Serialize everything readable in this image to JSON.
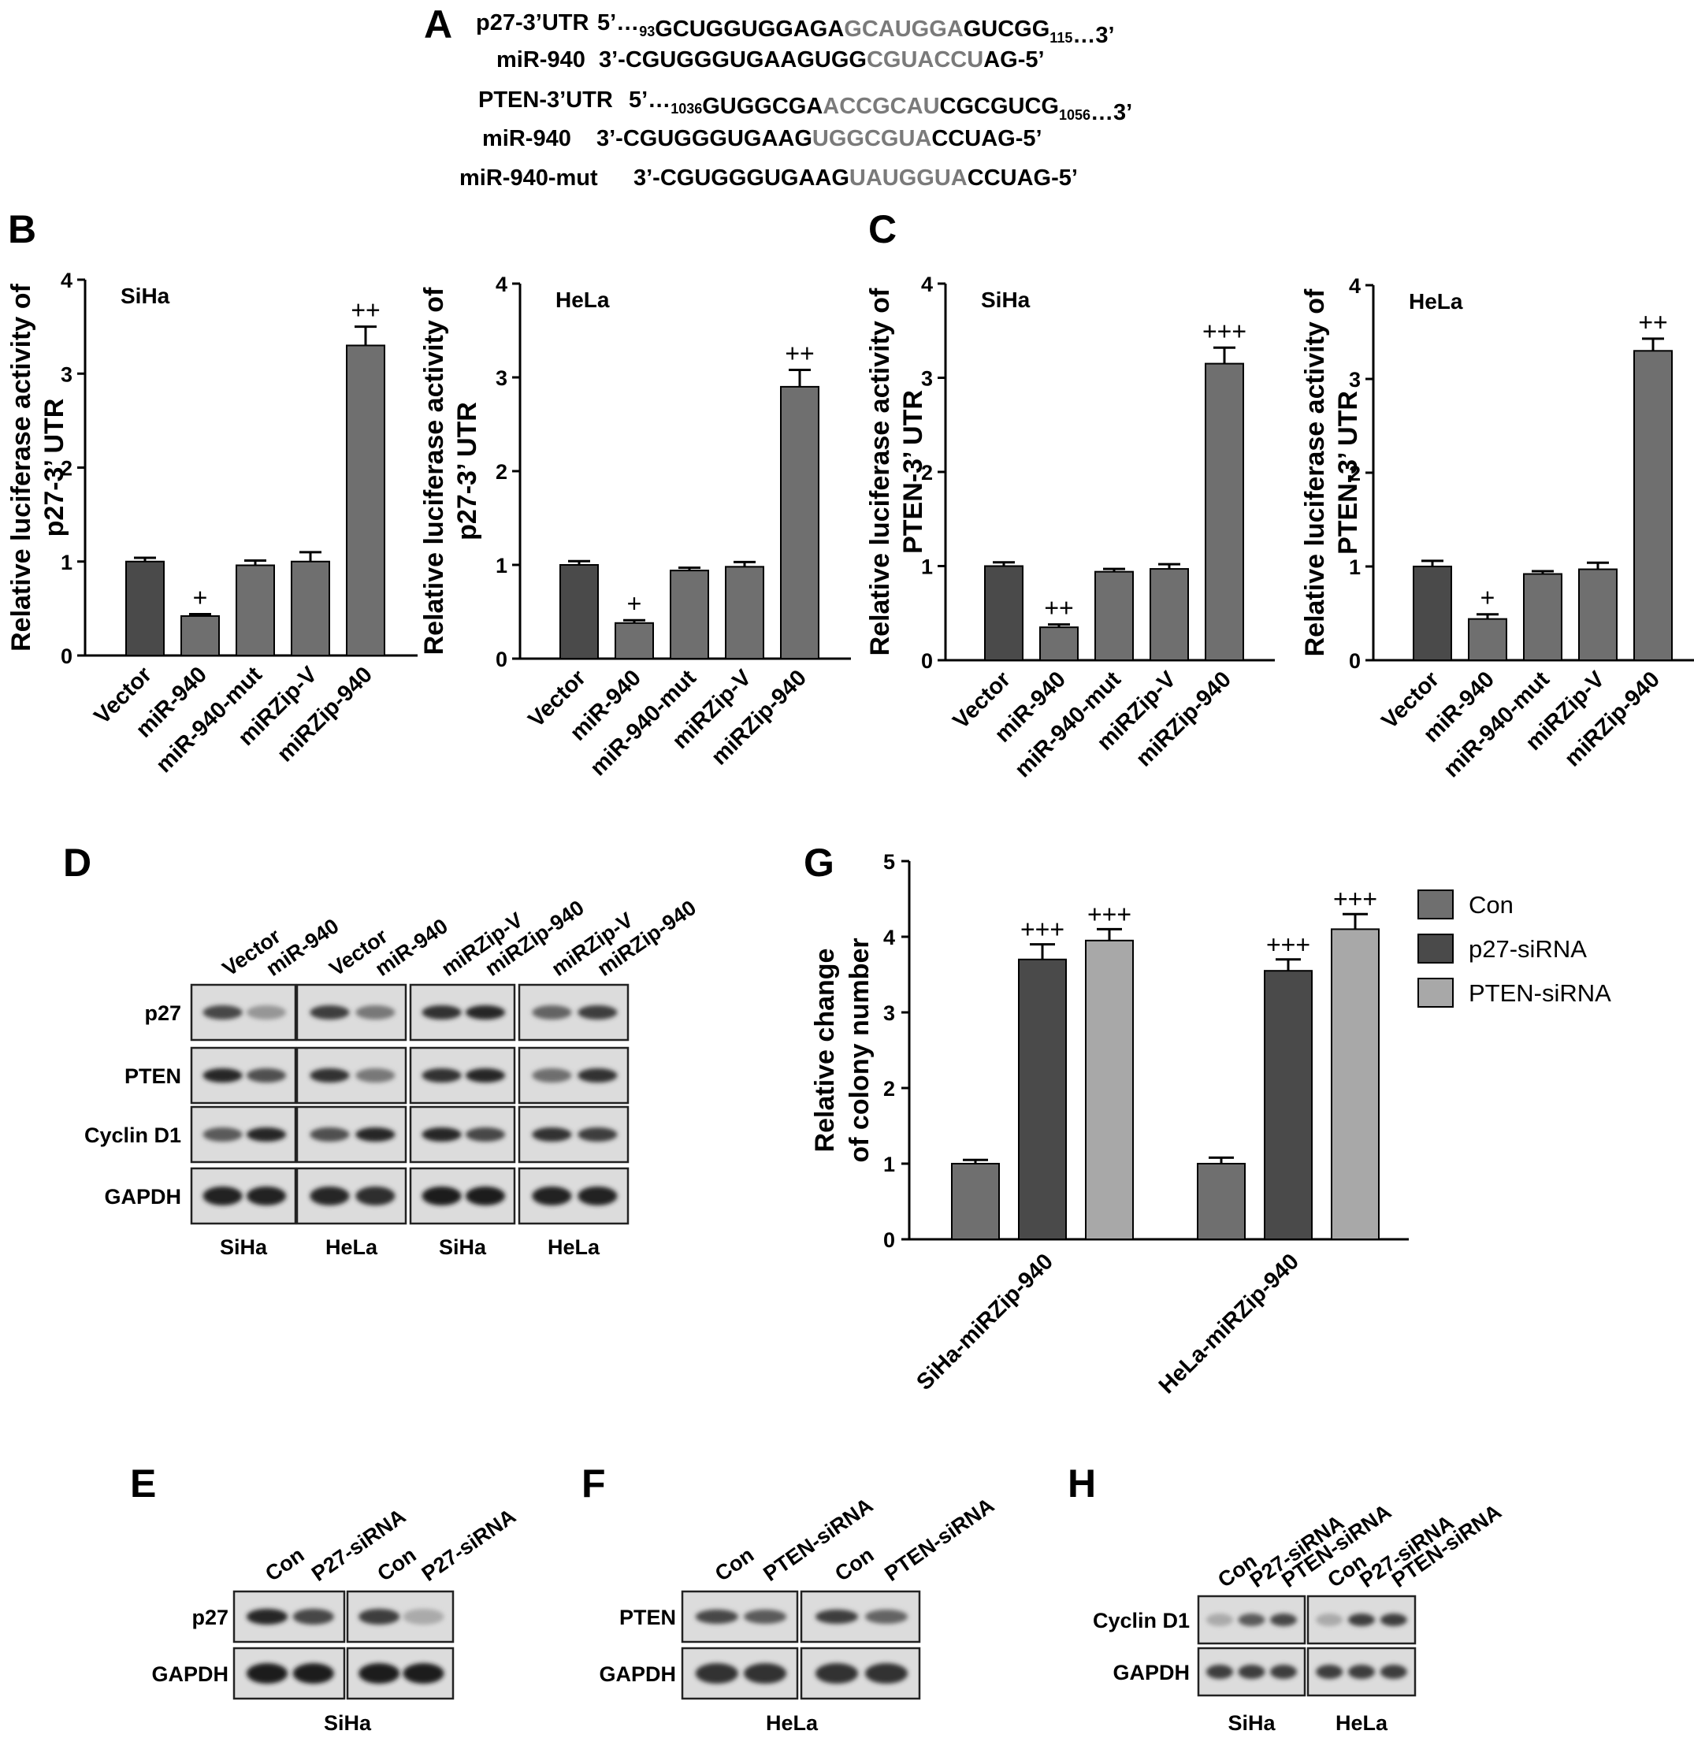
{
  "panels": {
    "A": "A",
    "B": "B",
    "C": "C",
    "D": "D",
    "E": "E",
    "F": "F",
    "G": "G",
    "H": "H"
  },
  "sequences": [
    {
      "label": "p27-3’UTR",
      "parts": [
        {
          "t": "5’…",
          "hl": false
        },
        {
          "t": "93",
          "sub": true
        },
        {
          "t": "GCUGGUGGAGA",
          "hl": false
        },
        {
          "t": "GCAUGGA",
          "hl": true
        },
        {
          "t": "GUCGG",
          "hl": false
        },
        {
          "t": "115",
          "sub": true
        },
        {
          "t": "…3’",
          "hl": false
        }
      ]
    },
    {
      "label": "miR-940",
      "parts": [
        {
          "t": "3’-CGUGGGUGAAGUGG",
          "hl": false
        },
        {
          "t": "CGUACCU",
          "hl": true
        },
        {
          "t": "AG-5’",
          "hl": false
        }
      ]
    },
    {
      "label": "PTEN-3’UTR",
      "parts": [
        {
          "t": "5’…",
          "hl": false
        },
        {
          "t": "1036",
          "sub": true
        },
        {
          "t": "GUGGCGA",
          "hl": false
        },
        {
          "t": "ACCGCAU",
          "hl": true
        },
        {
          "t": "CGCGUCG",
          "hl": false
        },
        {
          "t": "1056",
          "sub": true
        },
        {
          "t": "…3’",
          "hl": false
        }
      ]
    },
    {
      "label": "miR-940",
      "parts": [
        {
          "t": "3’-CGUGGGUGAAG",
          "hl": false
        },
        {
          "t": "UGGCGUA",
          "hl": true
        },
        {
          "t": "CCUAG-5’",
          "hl": false
        }
      ]
    },
    {
      "label": "miR-940-mut",
      "parts": [
        {
          "t": "3’-CGUGGGUGAAG",
          "hl": false
        },
        {
          "t": "UAUGGUA",
          "hl": true
        },
        {
          "t": "CCUAG-5’",
          "hl": false
        }
      ]
    }
  ],
  "chart_data": [
    {
      "panel": "B",
      "type": "bar",
      "cell": "SiHa",
      "ylabel": [
        "Relative luciferase activity of",
        "p27-3’ UTR"
      ],
      "ylim": [
        0,
        4
      ],
      "yticks": [
        "0",
        "1",
        "2",
        "3",
        "4"
      ],
      "categories": [
        "Vector",
        "miR-940",
        "miR-940-mut",
        "miRZip-V",
        "miRZip-940"
      ],
      "values": [
        1.0,
        0.42,
        0.96,
        1.0,
        3.3
      ],
      "errors": [
        0.04,
        0.02,
        0.05,
        0.1,
        0.2
      ],
      "significance": [
        "",
        "+",
        "",
        "",
        "++"
      ],
      "colors": [
        "#4a4a4a",
        "#6f6f6f",
        "#6f6f6f",
        "#6f6f6f",
        "#6f6f6f"
      ]
    },
    {
      "panel": "B",
      "type": "bar",
      "cell": "HeLa",
      "ylabel": [
        "Relative luciferase activity of",
        "p27-3’ UTR"
      ],
      "ylim": [
        0,
        4
      ],
      "yticks": [
        "0",
        "1",
        "2",
        "3",
        "4"
      ],
      "categories": [
        "Vector",
        "miR-940",
        "miR-940-mut",
        "miRZip-V",
        "miRZip-940"
      ],
      "values": [
        1.0,
        0.38,
        0.94,
        0.98,
        2.9
      ],
      "errors": [
        0.04,
        0.03,
        0.03,
        0.05,
        0.18
      ],
      "significance": [
        "",
        "+",
        "",
        "",
        "++"
      ],
      "colors": [
        "#4a4a4a",
        "#6f6f6f",
        "#6f6f6f",
        "#6f6f6f",
        "#6f6f6f"
      ]
    },
    {
      "panel": "C",
      "type": "bar",
      "cell": "SiHa",
      "ylabel": [
        "Relative luciferase activity of",
        "PTEN-3’ UTR"
      ],
      "ylim": [
        0,
        4
      ],
      "yticks": [
        "0",
        "1",
        "2",
        "3",
        "4"
      ],
      "categories": [
        "Vector",
        "miR-940",
        "miR-940-mut",
        "miRZip-V",
        "miRZip-940"
      ],
      "values": [
        1.0,
        0.35,
        0.94,
        0.97,
        3.15
      ],
      "errors": [
        0.04,
        0.03,
        0.03,
        0.05,
        0.17
      ],
      "significance": [
        "",
        "++",
        "",
        "",
        "+++"
      ],
      "colors": [
        "#4a4a4a",
        "#6f6f6f",
        "#6f6f6f",
        "#6f6f6f",
        "#6f6f6f"
      ]
    },
    {
      "panel": "C",
      "type": "bar",
      "cell": "HeLa",
      "ylabel": [
        "Relative luciferase activity of",
        "PTEN-3’ UTR"
      ],
      "ylim": [
        0,
        4
      ],
      "yticks": [
        "0",
        "1",
        "2",
        "3",
        "4"
      ],
      "categories": [
        "Vector",
        "miR-940",
        "miR-940-mut",
        "miRZip-V",
        "miRZip-940"
      ],
      "values": [
        1.0,
        0.44,
        0.92,
        0.97,
        3.3
      ],
      "errors": [
        0.06,
        0.05,
        0.03,
        0.07,
        0.13
      ],
      "significance": [
        "",
        "+",
        "",
        "",
        "++"
      ],
      "colors": [
        "#4a4a4a",
        "#6f6f6f",
        "#6f6f6f",
        "#6f6f6f",
        "#6f6f6f"
      ]
    },
    {
      "panel": "G",
      "type": "bar",
      "ylabel": [
        "Relative change",
        "of colony number"
      ],
      "ylim": [
        0,
        5
      ],
      "yticks": [
        "0",
        "1",
        "2",
        "3",
        "4",
        "5"
      ],
      "categories": [
        "SiHa-miRZip-940",
        "HeLa-miRZip-940"
      ],
      "series": [
        {
          "name": "Con",
          "values": [
            1.0,
            1.0
          ],
          "errors": [
            0.05,
            0.08
          ],
          "significance": [
            "",
            ""
          ],
          "color": "#6f6f6f"
        },
        {
          "name": "p27-siRNA",
          "values": [
            3.7,
            3.55
          ],
          "errors": [
            0.2,
            0.15
          ],
          "significance": [
            "+++",
            "+++"
          ],
          "color": "#4a4a4a"
        },
        {
          "name": "PTEN-siRNA",
          "values": [
            3.95,
            4.1
          ],
          "errors": [
            0.15,
            0.2
          ],
          "significance": [
            "+++",
            "+++"
          ],
          "color": "#a8a8a8"
        }
      ],
      "legend": "top-right"
    }
  ],
  "blots": {
    "D": {
      "lanes": [
        "Vector",
        "miR-940",
        "Vector",
        "miR-940",
        "miRZip-V",
        "miRZip-940",
        "miRZip-V",
        "miRZip-940"
      ],
      "rows": [
        "p27",
        "PTEN",
        "Cyclin D1",
        "GAPDH"
      ],
      "groups": [
        "SiHa",
        "HeLa",
        "SiHa",
        "HeLa"
      ]
    },
    "E": {
      "lanes": [
        "Con",
        "P27-siRNA",
        "Con",
        "P27-siRNA"
      ],
      "rows": [
        "p27",
        "GAPDH"
      ],
      "cell": "SiHa"
    },
    "F": {
      "lanes": [
        "Con",
        "PTEN-siRNA",
        "Con",
        "PTEN-siRNA"
      ],
      "rows": [
        "PTEN",
        "GAPDH"
      ],
      "cell": "HeLa"
    },
    "H": {
      "lanes": [
        "Con",
        "P27-siRNA",
        "PTEN-siRNA",
        "Con",
        "P27-siRNA",
        "PTEN-siRNA"
      ],
      "rows": [
        "Cyclin D1",
        "GAPDH"
      ],
      "groups": [
        "SiHa",
        "HeLa"
      ]
    }
  }
}
